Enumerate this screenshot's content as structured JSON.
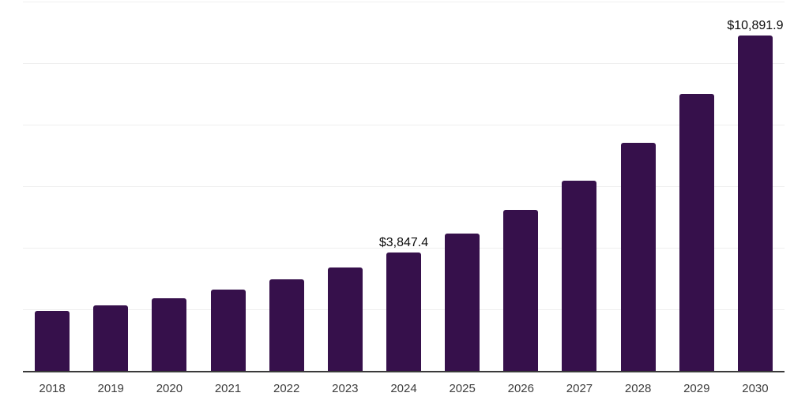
{
  "chart_data": {
    "type": "bar",
    "title": "",
    "xlabel": "",
    "ylabel": "",
    "categories": [
      "2018",
      "2019",
      "2020",
      "2021",
      "2022",
      "2023",
      "2024",
      "2025",
      "2026",
      "2027",
      "2028",
      "2029",
      "2030"
    ],
    "values": [
      1950,
      2130,
      2360,
      2640,
      2975,
      3360,
      3847.4,
      4460,
      5230,
      6180,
      7410,
      9000,
      10891.9
    ],
    "bar_labels": [
      null,
      null,
      null,
      null,
      null,
      null,
      "$3,847.4",
      null,
      null,
      null,
      null,
      null,
      "$10,891.9"
    ],
    "ylim": [
      0,
      12000
    ],
    "gridline_step": 2000,
    "grid": "horizontal gridlines, y-axis tick labels hidden",
    "legend": "none",
    "bar_color": "#36104B",
    "axis_color": "#3a3a3a",
    "gridline_color": "#efefef",
    "tick_label_color": "#3d3d3d",
    "data_label_color": "#0b0b0b",
    "background_color": "#ffffff"
  }
}
